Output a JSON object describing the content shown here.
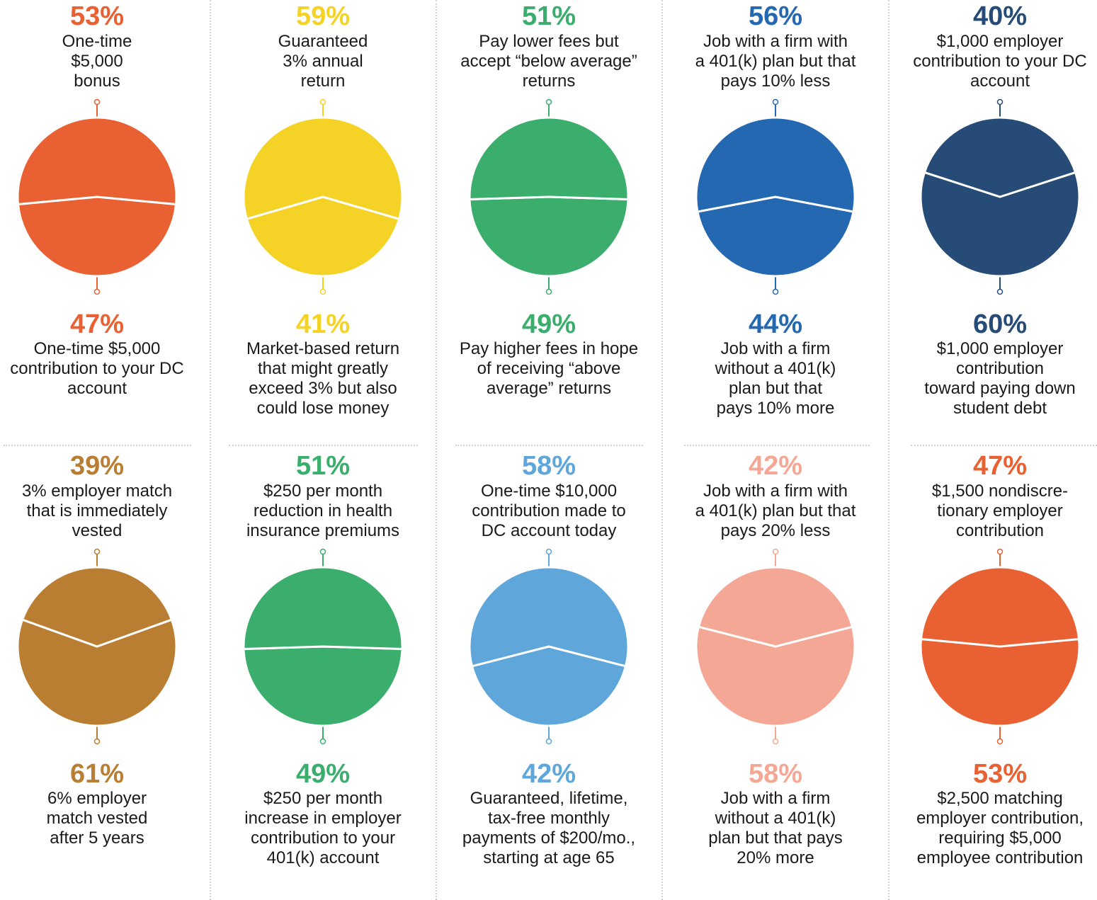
{
  "chart_data": [
    {
      "type": "pie",
      "color": "#E96032",
      "top": {
        "pct": "53%",
        "lines": [
          "One-time",
          "$5,000",
          "bonus"
        ]
      },
      "bottom": {
        "pct": "47%",
        "lines": [
          "One-time $5,000",
          "contribution to your DC",
          "account"
        ]
      },
      "values": [
        53,
        47
      ]
    },
    {
      "type": "pie",
      "color": "#F5D326",
      "top": {
        "pct": "59%",
        "lines": [
          "Guaranteed",
          "3% annual",
          "return"
        ]
      },
      "bottom": {
        "pct": "41%",
        "lines": [
          "Market-based return",
          "that might greatly",
          "exceed 3% but also",
          "could lose money"
        ]
      },
      "values": [
        59,
        41
      ]
    },
    {
      "type": "pie",
      "color": "#3BAE6E",
      "top": {
        "pct": "51%",
        "lines": [
          "Pay lower fees but",
          "accept “below average”",
          "returns"
        ]
      },
      "bottom": {
        "pct": "49%",
        "lines": [
          "Pay higher fees in hope",
          "of receiving “above",
          "average” returns"
        ]
      },
      "values": [
        51,
        49
      ]
    },
    {
      "type": "pie",
      "color": "#2468B1",
      "top": {
        "pct": "56%",
        "lines": [
          "Job with a firm with",
          "a 401(k) plan but that",
          "pays 10% less"
        ]
      },
      "bottom": {
        "pct": "44%",
        "lines": [
          "Job with a firm",
          "without a 401(k)",
          "plan but that",
          "pays 10% more"
        ]
      },
      "values": [
        56,
        44
      ]
    },
    {
      "type": "pie",
      "color": "#254B76",
      "top": {
        "pct": "40%",
        "lines": [
          "$1,000 employer",
          "contribution to your DC",
          "account"
        ]
      },
      "bottom": {
        "pct": "60%",
        "lines": [
          "$1,000 employer",
          "contribution",
          "toward paying down",
          "student debt"
        ]
      },
      "values": [
        40,
        60
      ]
    },
    {
      "type": "pie",
      "color": "#BA7E32",
      "top": {
        "pct": "39%",
        "lines": [
          "3% employer match",
          "that is immediately",
          "vested"
        ]
      },
      "bottom": {
        "pct": "61%",
        "lines": [
          "6% employer",
          "match vested",
          "after 5 years"
        ]
      },
      "values": [
        39,
        61
      ]
    },
    {
      "type": "pie",
      "color": "#3BAE6E",
      "top": {
        "pct": "51%",
        "lines": [
          "$250 per month",
          "reduction in health",
          "insurance premiums"
        ]
      },
      "bottom": {
        "pct": "49%",
        "lines": [
          "$250 per month",
          "increase in employer",
          "contribution to your",
          "401(k) account"
        ]
      },
      "values": [
        51,
        49
      ]
    },
    {
      "type": "pie",
      "color": "#5FA6DB",
      "top": {
        "pct": "58%",
        "lines": [
          "One-time $10,000",
          "contribution made to",
          "DC account today"
        ]
      },
      "bottom": {
        "pct": "42%",
        "lines": [
          "Guaranteed, lifetime,",
          "tax-free monthly",
          "payments of $200/mo.,",
          "starting at age 65"
        ]
      },
      "values": [
        58,
        42
      ]
    },
    {
      "type": "pie",
      "color": "#F5A795",
      "top": {
        "pct": "42%",
        "lines": [
          "Job with a firm with",
          "a 401(k) plan but that",
          "pays 20% less"
        ]
      },
      "bottom": {
        "pct": "58%",
        "lines": [
          "Job with a firm",
          "without a 401(k)",
          "plan but that pays",
          "20% more"
        ]
      },
      "values": [
        42,
        58
      ]
    },
    {
      "type": "pie",
      "color": "#E96032",
      "top": {
        "pct": "47%",
        "lines": [
          "$1,500 nondiscre-",
          "tionary employer",
          "contribution"
        ]
      },
      "bottom": {
        "pct": "53%",
        "lines": [
          "$2,500 matching",
          "employer contribution,",
          "requiring $5,000",
          "employee contribution"
        ]
      },
      "values": [
        47,
        53
      ]
    }
  ]
}
